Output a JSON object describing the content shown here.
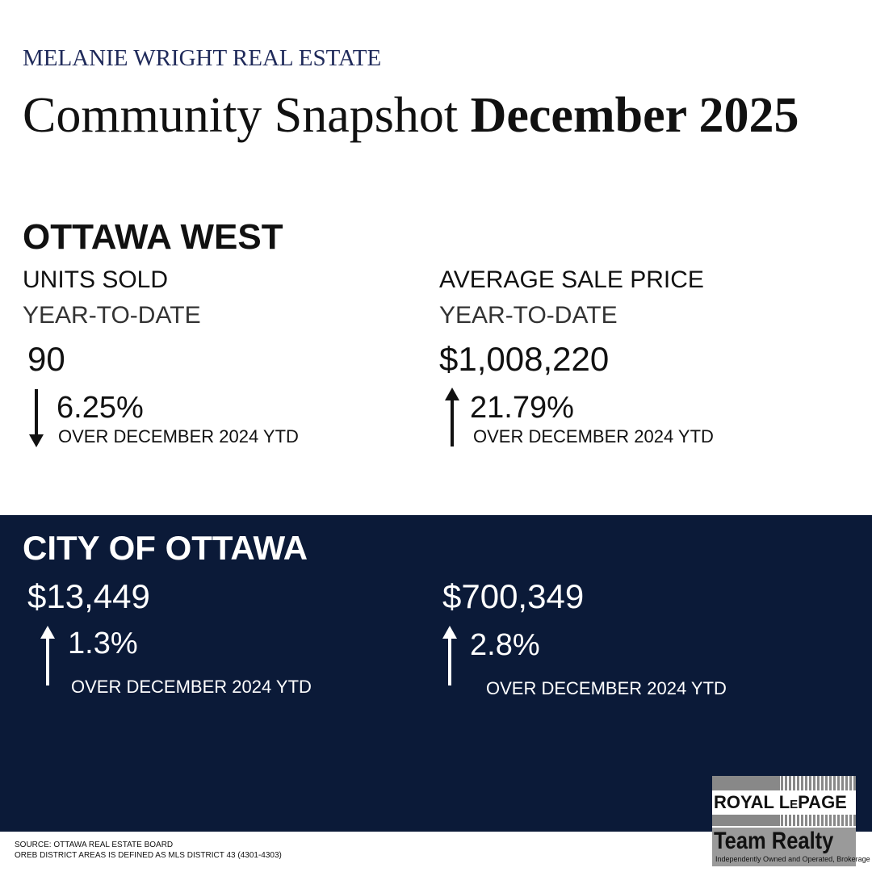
{
  "header": {
    "brand": "MELANIE WRIGHT REAL ESTATE",
    "title": "Community Snapshot",
    "title_bold": "December 2025"
  },
  "ottawa_west": {
    "heading": "OTTAWA WEST",
    "stats": [
      {
        "label": "UNITS SOLD",
        "period": "YEAR-TO-DATE",
        "value": "90",
        "change": "6.25%",
        "compare": "OVER DECEMBER 2024 YTD"
      },
      {
        "label": "AVERAGE SALE PRICE",
        "period": "YEAR-TO-DATE",
        "value": "$1,008,220",
        "change": "21.79%",
        "compare": "OVER DECEMBER 2024 YTD"
      }
    ]
  },
  "city_of_ottawa": {
    "heading": "CITY OF OTTAWA",
    "stats": [
      {
        "value": "$13,449",
        "change": "1.3%",
        "compare": "OVER DECEMBER 2024 YTD"
      },
      {
        "value": "$700,349",
        "change": "2.8%",
        "compare": "OVER DECEMBER 2024 YTD"
      }
    ]
  },
  "footer": {
    "source": "SOURCE: OTTAWA REAL ESTATE BOARD",
    "note": "OREB DISTRICT AREAS IS DEFINED AS MLS DISTRICT 43 (4301-4303)"
  },
  "logo": {
    "brand": "ROYAL LePAGE",
    "name": "Team Realty",
    "tagline": "Independently Owned and Operated, Brokerage"
  }
}
